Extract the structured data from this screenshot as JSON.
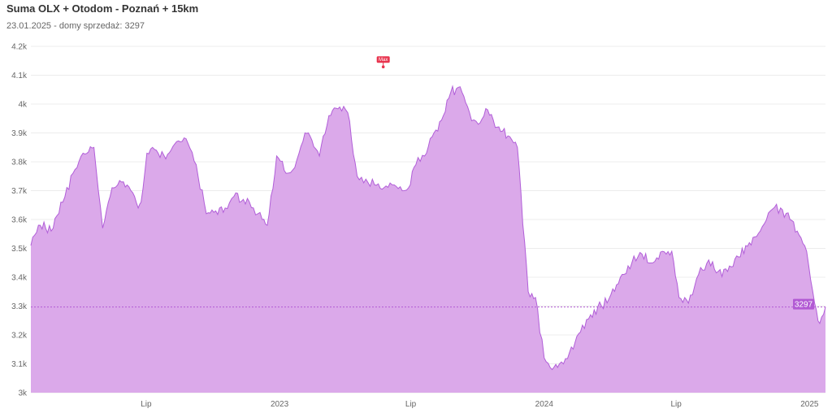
{
  "header": {
    "title": "Suma OLX + Otodom - Poznań + 15km",
    "subtitle": "23.01.2025 - domy sprzedaż: 3297"
  },
  "colors": {
    "line": "#b15fd8",
    "fill": "#dba9ea",
    "grid": "#ececec",
    "max_marker": "#e8344e",
    "current_marker": "#b25ad4"
  },
  "chart_data": {
    "type": "area",
    "title": "Suma OLX + Otodom - Poznań + 15km",
    "subtitle": "23.01.2025 - domy sprzedaż: 3297",
    "xlabel": "",
    "ylabel": "",
    "xlim": [
      "2022-01-23",
      "2025-01-23"
    ],
    "ylim": [
      3000,
      4200
    ],
    "grid": true,
    "legend": "none",
    "y_ticks": [
      3000,
      3100,
      3200,
      3300,
      3400,
      3500,
      3600,
      3700,
      3800,
      3900,
      4000,
      4100,
      4200
    ],
    "y_tick_labels": [
      "3k",
      "3.1k",
      "3.2k",
      "3.3k",
      "3.4k",
      "3.5k",
      "3.6k",
      "3.7k",
      "3.8k",
      "3.9k",
      "4k",
      "4.1k",
      "4.2k"
    ],
    "x_ticks": [
      {
        "date": "2022-07-01",
        "label": "Lip"
      },
      {
        "date": "2023-01-01",
        "label": "2023"
      },
      {
        "date": "2023-07-01",
        "label": "Lip"
      },
      {
        "date": "2024-01-01",
        "label": "2024"
      },
      {
        "date": "2024-07-01",
        "label": "Lip"
      },
      {
        "date": "2025-01-01",
        "label": "2025"
      }
    ],
    "series": [
      {
        "x": [
          "2022-01-23",
          "2022-02-05",
          "2022-02-20",
          "2022-03-08",
          "2022-03-22",
          "2022-04-05",
          "2022-04-20",
          "2022-05-02",
          "2022-05-15",
          "2022-05-28",
          "2022-06-10",
          "2022-06-20",
          "2022-06-24",
          "2022-07-02",
          "2022-07-15",
          "2022-07-28",
          "2022-08-12",
          "2022-08-25",
          "2022-09-08",
          "2022-09-22",
          "2022-10-05",
          "2022-10-18",
          "2022-10-30",
          "2022-11-12",
          "2022-11-26",
          "2022-12-08",
          "2022-12-15",
          "2022-12-28",
          "2023-01-10",
          "2023-01-22",
          "2023-02-05",
          "2023-02-12",
          "2023-02-25",
          "2023-03-10",
          "2023-03-25",
          "2023-04-05",
          "2023-04-18",
          "2023-04-30",
          "2023-05-12",
          "2023-05-25",
          "2023-06-08",
          "2023-06-22",
          "2023-06-28",
          "2023-07-08",
          "2023-07-20",
          "2023-08-02",
          "2023-08-15",
          "2023-08-25",
          "2023-09-07",
          "2023-09-20",
          "2023-10-02",
          "2023-10-15",
          "2023-10-28",
          "2023-11-12",
          "2023-11-25",
          "2023-12-10",
          "2023-12-20",
          "2024-01-01",
          "2024-01-12",
          "2024-01-22",
          "2024-02-05",
          "2024-02-20",
          "2024-03-05",
          "2024-03-20",
          "2024-04-02",
          "2024-04-15",
          "2024-05-01",
          "2024-05-15",
          "2024-05-30",
          "2024-06-12",
          "2024-06-25",
          "2024-07-05",
          "2024-07-18",
          "2024-08-01",
          "2024-08-15",
          "2024-08-28",
          "2024-09-10",
          "2024-09-25",
          "2024-10-10",
          "2024-10-25",
          "2024-11-08",
          "2024-11-22",
          "2024-12-05",
          "2024-12-15",
          "2024-12-28",
          "2025-01-08",
          "2025-01-15",
          "2025-01-23"
        ],
        "y": [
          3510,
          3580,
          3560,
          3660,
          3760,
          3830,
          3850,
          3570,
          3710,
          3730,
          3700,
          3640,
          3660,
          3830,
          3840,
          3810,
          3870,
          3880,
          3790,
          3620,
          3630,
          3640,
          3680,
          3670,
          3640,
          3600,
          3580,
          3820,
          3760,
          3780,
          3900,
          3890,
          3820,
          3960,
          3990,
          3970,
          3750,
          3740,
          3720,
          3710,
          3720,
          3700,
          3710,
          3790,
          3820,
          3900,
          3960,
          4040,
          4060,
          3970,
          3930,
          3980,
          3920,
          3890,
          3850,
          3350,
          3330,
          3120,
          3080,
          3100,
          3140,
          3210,
          3270,
          3300,
          3340,
          3400,
          3450,
          3480,
          3450,
          3490,
          3490,
          3330,
          3310,
          3410,
          3460,
          3420,
          3420,
          3470,
          3520,
          3560,
          3630,
          3640,
          3600,
          3560,
          3490,
          3310,
          3240,
          3297
        ]
      }
    ],
    "annotations": {
      "max": {
        "date": "2023-05-24",
        "value": 4129,
        "label": "Max"
      },
      "current": {
        "value": 3297,
        "label": "3297"
      }
    }
  }
}
